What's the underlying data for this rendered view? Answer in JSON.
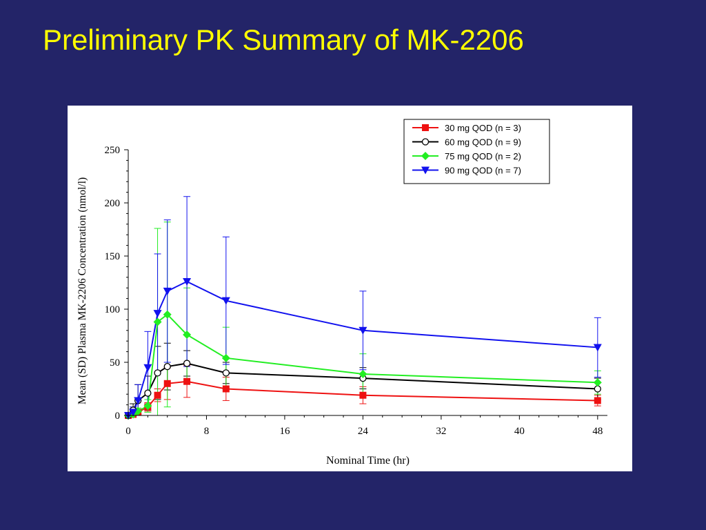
{
  "slide": {
    "title": "Preliminary PK Summary of MK-2206",
    "background_color": "#232468",
    "title_color": "#ffff00"
  },
  "chart_data": {
    "type": "line",
    "xlabel": "Nominal Time (hr)",
    "ylabel": "Mean (SD) Plasma MK-2206 Concentration  (nmol/l)",
    "xlim": [
      0,
      49
    ],
    "ylim": [
      0,
      250
    ],
    "xticks": [
      0,
      8,
      16,
      24,
      32,
      40,
      48
    ],
    "yticks": [
      0,
      50,
      100,
      150,
      200,
      250
    ],
    "grid": false,
    "legend_position": "top-right",
    "error_bars": "SD",
    "series": [
      {
        "name": "30 mg QOD (n = 3)",
        "color": "#ee1111",
        "marker": "square-filled",
        "x": [
          0,
          0.5,
          1,
          2,
          3,
          4,
          6,
          10,
          24,
          48
        ],
        "y": [
          0,
          1,
          3,
          8,
          19,
          30,
          32,
          25,
          19,
          14
        ],
        "sd": [
          0,
          1,
          2,
          4,
          6,
          15,
          15,
          11,
          8,
          5
        ]
      },
      {
        "name": "60 mg QOD (n = 9)",
        "color": "#000000",
        "marker": "circle-open",
        "x": [
          0,
          0.5,
          1,
          2,
          3,
          4,
          6,
          10,
          24,
          48
        ],
        "y": [
          0,
          5,
          14,
          21,
          40,
          46,
          49,
          40,
          35,
          25
        ],
        "sd": [
          0,
          6,
          15,
          16,
          25,
          22,
          12,
          10,
          10,
          10
        ]
      },
      {
        "name": "75 mg QOD (n = 2)",
        "color": "#22ee22",
        "marker": "diamond-filled",
        "x": [
          0,
          0.5,
          1,
          2,
          3,
          4,
          6,
          10,
          24,
          48
        ],
        "y": [
          0,
          1,
          4,
          9,
          88,
          95,
          76,
          54,
          39,
          31
        ],
        "sd": [
          0,
          1,
          3,
          6,
          88,
          87,
          44,
          29,
          19,
          11
        ]
      },
      {
        "name": "90 mg QOD (n = 7)",
        "color": "#1111ee",
        "marker": "triangle-down-filled",
        "x": [
          0,
          0.5,
          1,
          2,
          3,
          4,
          6,
          10,
          24,
          48
        ],
        "y": [
          0,
          3,
          14,
          45,
          96,
          117,
          126,
          108,
          80,
          64
        ],
        "sd": [
          0,
          5,
          15,
          34,
          56,
          67,
          80,
          60,
          37,
          28
        ]
      }
    ]
  }
}
